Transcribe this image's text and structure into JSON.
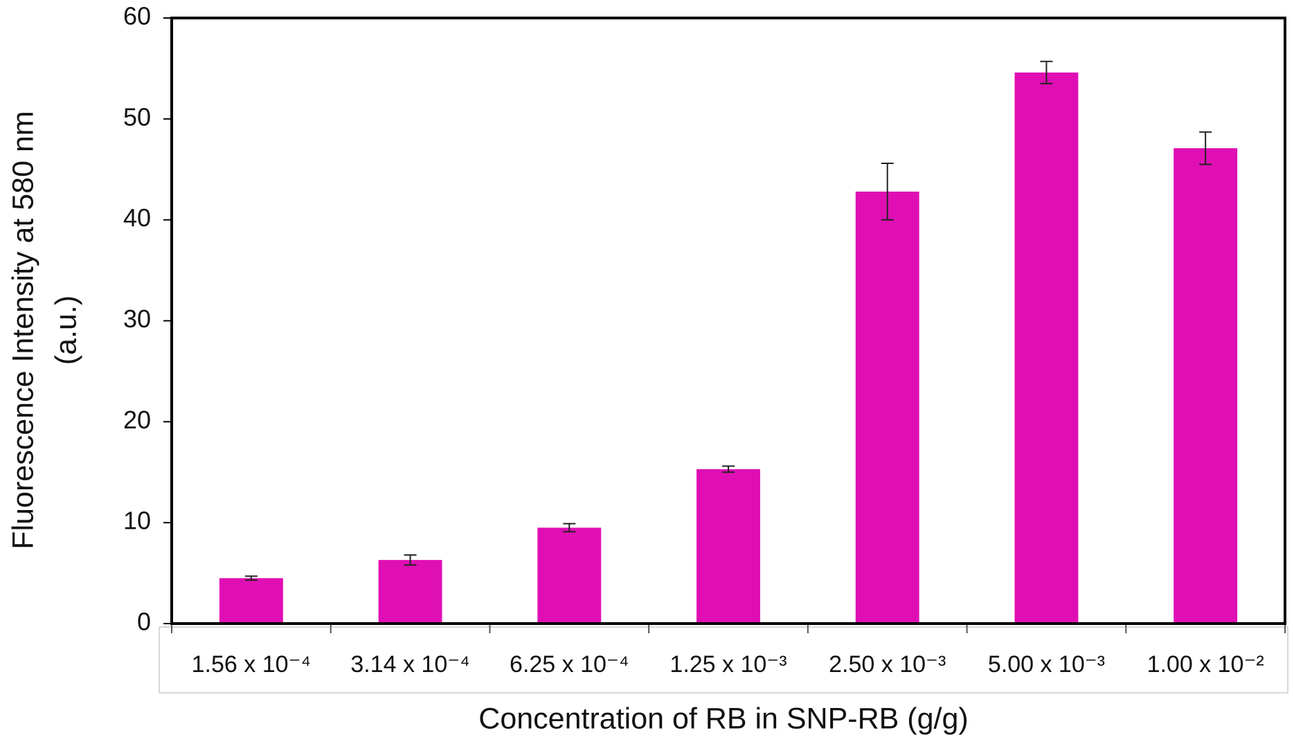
{
  "chart_data": {
    "type": "bar",
    "xlabel": "Concentration of RB in SNP-RB  (g/g)",
    "ylabel": [
      "Fluorescence Intensity at 580 nm",
      "(a.u.)"
    ],
    "categories": [
      "1.56 x 10⁻⁴",
      "3.14 x 10⁻⁴",
      "6.25 x 10⁻⁴",
      "1.25 x 10⁻³",
      "2.50 x 10⁻³",
      "5.00 x 10⁻³",
      "1.00 x 10⁻²"
    ],
    "values": [
      4.5,
      6.3,
      9.5,
      15.3,
      42.8,
      54.6,
      47.1
    ],
    "errors": [
      0.2,
      0.5,
      0.4,
      0.3,
      2.8,
      1.1,
      1.6
    ],
    "color": "#e00fb4",
    "ylim": [
      0,
      60
    ],
    "yticks": [
      0,
      10,
      20,
      30,
      40,
      50,
      60
    ],
    "grid": false
  }
}
